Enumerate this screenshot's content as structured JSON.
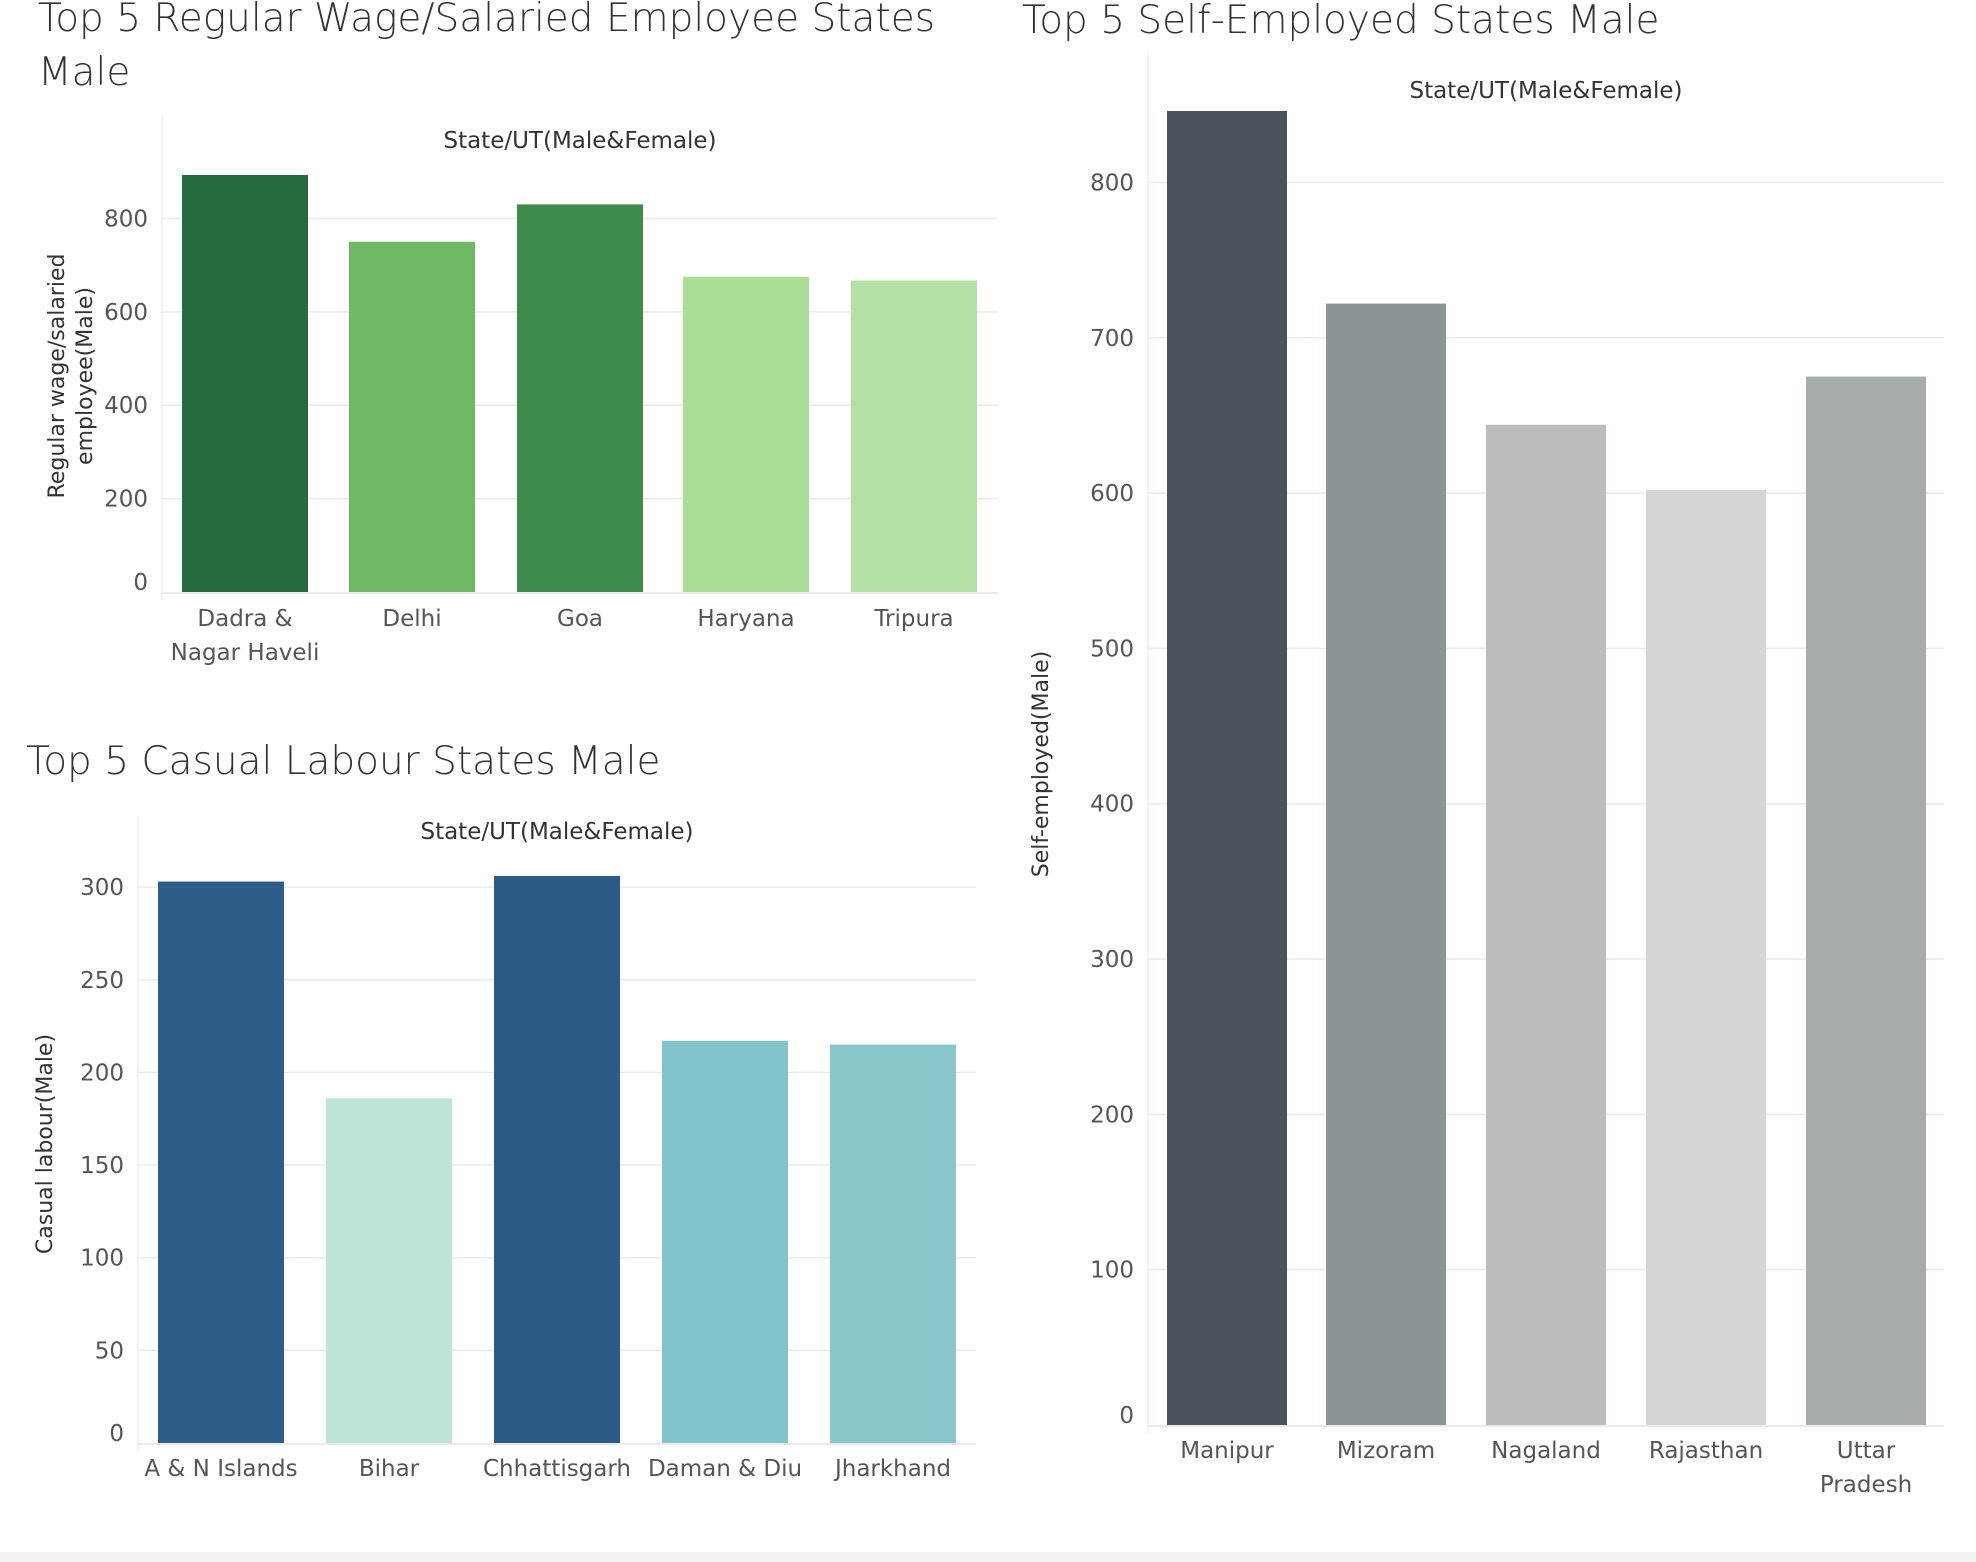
{
  "chart_data": [
    {
      "type": "bar",
      "title": "Top 5 Regular Wage/Salaried Employee States Male",
      "xlabel": "State/UT(Male&Female)",
      "ylabel": "Regular wage/salaried employee(Male)",
      "categories": [
        "Dadra & Nagar Haveli",
        "Delhi",
        "Goa",
        "Haryana",
        "Tripura"
      ],
      "values": [
        893,
        750,
        830,
        675,
        667
      ],
      "colors": [
        "#256b3e",
        "#6fb865",
        "#3e8c4b",
        "#abde97",
        "#b2e0a5"
      ],
      "ylim": [
        0,
        893
      ],
      "yticks": [
        0,
        200,
        400,
        600,
        800
      ],
      "grid": true
    },
    {
      "type": "bar",
      "title": "Top 5 Casual Labour States Male",
      "xlabel": "State/UT(Male&Female)",
      "ylabel": "Casual labour(Male)",
      "categories": [
        "A & N Islands",
        "Bihar",
        "Chhattisgarh",
        "Daman & Diu",
        "Jharkhand"
      ],
      "values": [
        303,
        186,
        306,
        217,
        215
      ],
      "colors": [
        "#2e5d87",
        "#bde5da",
        "#2e5b86",
        "#82c4cb",
        "#87c6cb"
      ],
      "ylim": [
        0,
        306
      ],
      "yticks": [
        0,
        50,
        100,
        150,
        200,
        250,
        300
      ],
      "grid": true
    },
    {
      "type": "bar",
      "title": "Top 5 Self-Employed States Male",
      "xlabel": "State/UT(Male&Female)",
      "ylabel": "Self-employed(Male)",
      "categories": [
        "Manipur",
        "Mizoram",
        "Nagaland",
        "Rajasthan",
        "Uttar Pradesh"
      ],
      "values": [
        846,
        722,
        644,
        602,
        675
      ],
      "colors": [
        "#49535e",
        "#8b9496",
        "#babdbd",
        "#d5d5d5",
        "#a7acac"
      ],
      "ylim": [
        0,
        846
      ],
      "yticks": [
        0,
        100,
        200,
        300,
        400,
        500,
        600,
        700,
        800
      ],
      "grid": true
    }
  ]
}
